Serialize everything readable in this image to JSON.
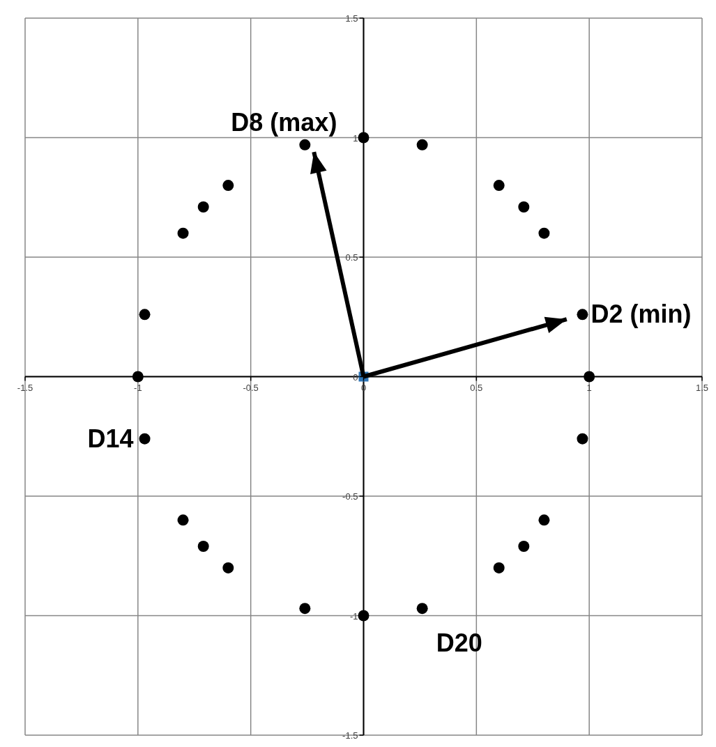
{
  "chart_data": {
    "type": "scatter",
    "xlim": [
      -1.5,
      1.5
    ],
    "ylim": [
      -1.5,
      1.5
    ],
    "xticks": [
      -1.5,
      -1,
      -0.5,
      0,
      0.5,
      1,
      1.5
    ],
    "yticks": [
      -1.5,
      -1,
      -0.5,
      0,
      0.5,
      1,
      1.5
    ],
    "grid": true,
    "marker": "circle",
    "series": [
      {
        "color": "#000000",
        "x": [
          1,
          0.97,
          0.8,
          0.71,
          0.6,
          0.26,
          0,
          -0.26,
          -0.6,
          -0.71,
          -0.8,
          -0.97,
          -1,
          -0.97,
          -0.8,
          -0.71,
          -0.6,
          -0.26,
          0,
          0.26,
          0.6,
          0.71,
          0.8,
          0.97
        ],
        "values": [
          0,
          0.26,
          0.6,
          0.71,
          0.8,
          0.97,
          1,
          0.97,
          0.8,
          0.71,
          0.6,
          0.26,
          0,
          -0.26,
          -0.6,
          -0.71,
          -0.8,
          -0.97,
          -1,
          -0.97,
          -0.8,
          -0.71,
          -0.6,
          -0.26
        ]
      },
      {
        "type": "scatter",
        "color": "#2e75b6",
        "marker": "square",
        "x": [
          0
        ],
        "values": [
          0
        ]
      },
      {
        "type": "line",
        "color": "#000000",
        "marker": "none",
        "x": [
          0,
          -0.22
        ],
        "values": [
          0,
          0.94
        ]
      },
      {
        "type": "line",
        "color": "#000000",
        "marker": "none",
        "x": [
          0,
          0.9
        ],
        "values": [
          0,
          0.24
        ]
      }
    ],
    "annotations": [
      {
        "text": "D8 (max)",
        "x": -0.26,
        "y": 0.97
      },
      {
        "text": "D2 (min)",
        "x": 0.97,
        "y": 0.26
      },
      {
        "text": "D14",
        "x": -0.97,
        "y": -0.26
      },
      {
        "text": "D20",
        "x": 0.26,
        "y": -0.97
      }
    ]
  }
}
